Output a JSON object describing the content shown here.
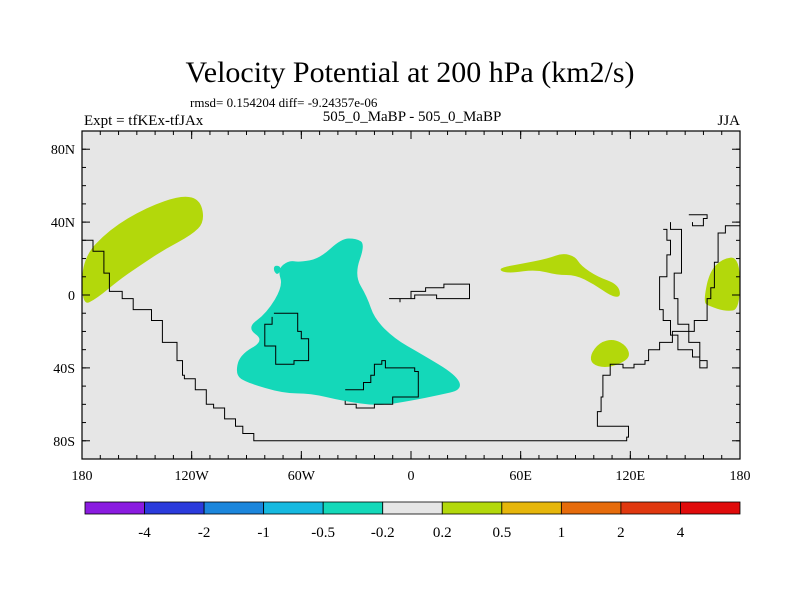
{
  "chart_data": {
    "type": "heatmap",
    "title": "Velocity Potential at 200 hPa (km2/s)",
    "stats_line": "rmsd= 0.154204 diff= -9.24357e-06",
    "left_label": "Expt = tfKEx-tfJAx",
    "center_label": "505_0_MaBP - 505_0_MaBP",
    "right_label": "JJA",
    "x_range": [
      -180,
      180
    ],
    "y_range": [
      -90,
      90
    ],
    "x_ticks": [
      {
        "value": -180,
        "label": "180"
      },
      {
        "value": -120,
        "label": "120W"
      },
      {
        "value": -60,
        "label": "60W"
      },
      {
        "value": 0,
        "label": "0"
      },
      {
        "value": 60,
        "label": "60E"
      },
      {
        "value": 120,
        "label": "120E"
      },
      {
        "value": 180,
        "label": "180"
      }
    ],
    "y_ticks": [
      {
        "value": 80,
        "label": "80N"
      },
      {
        "value": 40,
        "label": "40N"
      },
      {
        "value": 0,
        "label": "0"
      },
      {
        "value": -40,
        "label": "40S"
      },
      {
        "value": -80,
        "label": "80S"
      }
    ],
    "colorbar": {
      "levels": [
        "-4",
        "-2",
        "-1",
        "-0.5",
        "-0.2",
        "0.2",
        "0.5",
        "1",
        "2",
        "4"
      ],
      "colors": [
        "#8a1be0",
        "#2b3bdc",
        "#1b86dc",
        "#16b9e0",
        "#14d8b9",
        "#e6e6e6",
        "#b3d80b",
        "#e6b60b",
        "#e66b0b",
        "#e0380f",
        "#e00b0b"
      ]
    },
    "background_color": "#e6e6e6",
    "regions": [
      {
        "category": "0.2 to 0.5",
        "color": "#b3d80b",
        "description": "Northwest Pacific / North America lobe",
        "points": [
          [
            -180,
            20
          ],
          [
            -165,
            36
          ],
          [
            -145,
            48
          ],
          [
            -125,
            55
          ],
          [
            -115,
            52
          ],
          [
            -113,
            40
          ],
          [
            -120,
            33
          ],
          [
            -135,
            25
          ],
          [
            -150,
            15
          ],
          [
            -160,
            8
          ],
          [
            -172,
            -2
          ],
          [
            -180,
            -6
          ]
        ]
      },
      {
        "category": "0.2 to 0.5",
        "color": "#b3d80b",
        "points": [
          [
            49,
            15
          ],
          [
            60,
            17
          ],
          [
            75,
            20
          ],
          [
            83,
            23
          ],
          [
            90,
            21
          ],
          [
            93,
            16
          ],
          [
            102,
            10
          ],
          [
            113,
            6
          ],
          [
            115,
            -1
          ],
          [
            110,
            -1
          ],
          [
            100,
            6
          ],
          [
            90,
            11
          ],
          [
            80,
            11
          ],
          [
            68,
            14
          ],
          [
            55,
            12
          ],
          [
            49,
            13
          ]
        ]
      },
      {
        "category": "0.2 to 0.5",
        "color": "#b3d80b",
        "points": [
          [
            98,
            -33
          ],
          [
            103,
            -26
          ],
          [
            111,
            -24
          ],
          [
            118,
            -28
          ],
          [
            120,
            -34
          ],
          [
            114,
            -38
          ],
          [
            106,
            -40
          ],
          [
            99,
            -38
          ]
        ]
      },
      {
        "category": "0.2 to 0.5",
        "color": "#b3d80b",
        "points": [
          [
            160,
            -4
          ],
          [
            163,
            12
          ],
          [
            170,
            20
          ],
          [
            180,
            21
          ],
          [
            180,
            -8
          ],
          [
            172,
            -9
          ],
          [
            163,
            -6
          ]
        ]
      },
      {
        "category": "-0.5 to -0.2",
        "color": "#14d8b9",
        "points": [
          [
            -90,
            -18
          ],
          [
            -79,
            -10
          ],
          [
            -70,
            5
          ],
          [
            -73,
            14
          ],
          [
            -67,
            19
          ],
          [
            -61,
            18
          ],
          [
            -50,
            20
          ],
          [
            -38,
            31
          ],
          [
            -30,
            31
          ],
          [
            -25,
            28
          ],
          [
            -31,
            11
          ],
          [
            -24,
            -1
          ],
          [
            -20,
            -13
          ],
          [
            -9,
            -24
          ],
          [
            5,
            -32
          ],
          [
            25,
            -44
          ],
          [
            28,
            -52
          ],
          [
            15,
            -55
          ],
          [
            0,
            -58
          ],
          [
            -18,
            -61
          ],
          [
            -38,
            -58
          ],
          [
            -55,
            -54
          ],
          [
            -70,
            -54
          ],
          [
            -90,
            -48
          ],
          [
            -96,
            -44
          ],
          [
            -94,
            -33
          ],
          [
            -80,
            -25
          ]
        ]
      },
      {
        "category": "-0.5 to -0.2",
        "color": "#14d8b9",
        "points": [
          [
            -75,
            16
          ],
          [
            -72,
            16
          ],
          [
            -71,
            14
          ],
          [
            -73,
            11
          ],
          [
            -75,
            13
          ]
        ]
      },
      {
        "category": "-0.5 to -0.2",
        "color": "#14d8b9",
        "points": [
          [
            -68,
            17
          ],
          [
            -66,
            16
          ],
          [
            -66,
            13
          ],
          [
            -68,
            12
          ],
          [
            -69,
            15
          ]
        ]
      }
    ],
    "outlines": [
      [
        [
          -180,
          30
        ],
        [
          -174,
          30
        ],
        [
          -174,
          24
        ],
        [
          -170,
          24
        ],
        [
          -168,
          12
        ],
        [
          -165,
          2
        ],
        [
          -158,
          -2
        ],
        [
          -152,
          -8
        ],
        [
          -146,
          -8
        ],
        [
          -142,
          -14
        ],
        [
          -136,
          -26
        ],
        [
          -128,
          -36
        ],
        [
          -125,
          -44
        ],
        [
          -124,
          -46
        ],
        [
          -118,
          -52
        ],
        [
          -112,
          -60
        ],
        [
          -108,
          -62
        ],
        [
          -102,
          -68
        ],
        [
          -96,
          -72
        ],
        [
          -92,
          -76
        ],
        [
          -86,
          -80
        ],
        [
          -80,
          -80
        ],
        [
          -66,
          -80
        ],
        [
          -40,
          -80
        ],
        [
          0,
          -80
        ],
        [
          60,
          -80
        ],
        [
          96,
          -80
        ],
        [
          118,
          -78
        ],
        [
          119,
          -72
        ],
        [
          106,
          -72
        ],
        [
          102,
          -64
        ],
        [
          104,
          -56
        ],
        [
          105,
          -44
        ],
        [
          109,
          -38
        ],
        [
          116,
          -40
        ],
        [
          122,
          -38
        ],
        [
          128,
          -36
        ],
        [
          130,
          -30
        ],
        [
          136,
          -26
        ],
        [
          143,
          -20
        ],
        [
          155,
          -14
        ],
        [
          162,
          -2
        ],
        [
          164,
          4
        ],
        [
          166,
          18
        ],
        [
          168,
          34
        ],
        [
          172,
          38
        ],
        [
          180,
          38
        ]
      ],
      [
        [
          -75,
          -10
        ],
        [
          -62,
          -10
        ],
        [
          -62,
          -20
        ],
        [
          -60,
          -24
        ],
        [
          -56,
          -24
        ],
        [
          -56,
          -36
        ],
        [
          -62,
          -36
        ],
        [
          -64,
          -38
        ],
        [
          -74,
          -36
        ],
        [
          -74,
          -28
        ],
        [
          -80,
          -24
        ],
        [
          -80,
          -16
        ],
        [
          -76,
          -12
        ]
      ],
      [
        [
          -36,
          -52
        ],
        [
          -26,
          -48
        ],
        [
          -22,
          -44
        ],
        [
          -20,
          -38
        ],
        [
          -16,
          -36
        ],
        [
          -14,
          -40
        ],
        [
          -8,
          -40
        ],
        [
          2,
          -42
        ],
        [
          4,
          -48
        ],
        [
          4,
          -56
        ],
        [
          -10,
          -60
        ],
        [
          -20,
          -62
        ],
        [
          -30,
          -60
        ],
        [
          -36,
          -58
        ]
      ],
      [
        [
          -12,
          -2
        ],
        [
          -4,
          -2
        ],
        [
          0,
          2
        ],
        [
          8,
          4
        ],
        [
          18,
          6
        ],
        [
          30,
          6
        ],
        [
          32,
          -2
        ],
        [
          22,
          -2
        ],
        [
          14,
          0
        ],
        [
          2,
          -2
        ],
        [
          -6,
          -4
        ]
      ],
      [
        [
          138,
          36
        ],
        [
          140,
          30
        ],
        [
          142,
          22
        ],
        [
          140,
          10
        ],
        [
          136,
          0
        ],
        [
          136,
          -8
        ],
        [
          138,
          -14
        ],
        [
          142,
          -22
        ],
        [
          146,
          -30
        ],
        [
          154,
          -34
        ],
        [
          158,
          -40
        ],
        [
          160,
          -40
        ],
        [
          162,
          -36
        ],
        [
          158,
          -26
        ],
        [
          152,
          -16
        ],
        [
          146,
          -2
        ],
        [
          144,
          12
        ],
        [
          148,
          24
        ],
        [
          148,
          36
        ],
        [
          142,
          40
        ]
      ],
      [
        [
          152,
          44
        ],
        [
          160,
          44
        ],
        [
          162,
          42
        ],
        [
          160,
          38
        ],
        [
          154,
          40
        ]
      ]
    ]
  }
}
